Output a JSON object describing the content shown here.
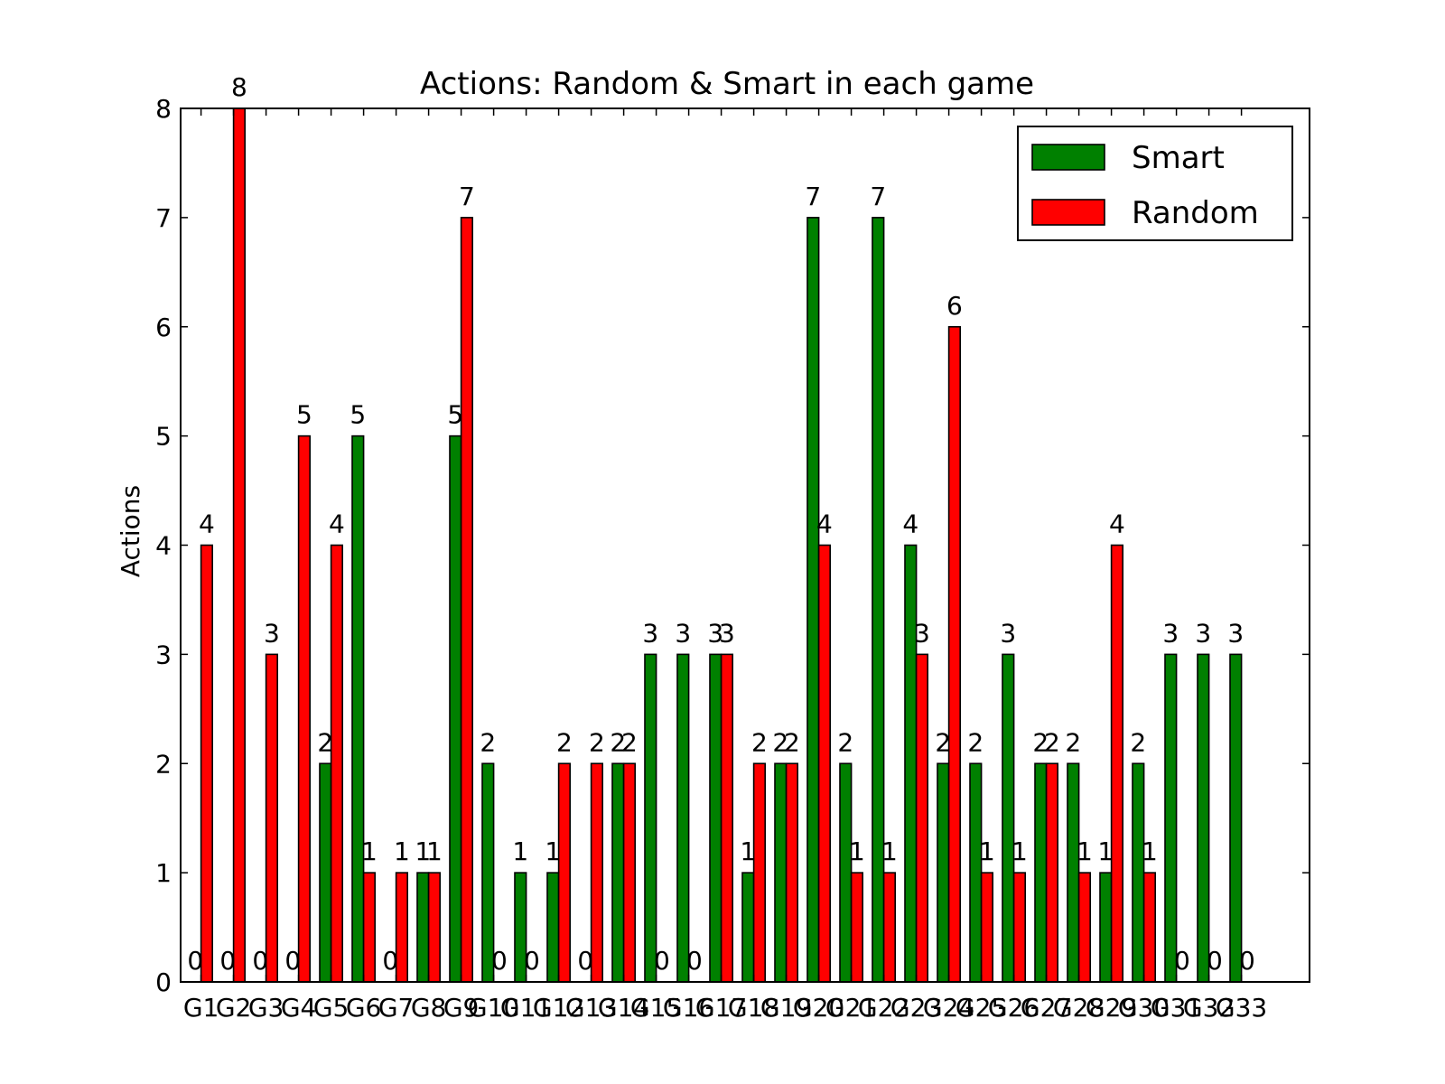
{
  "chart_data": {
    "type": "bar",
    "title": "Actions: Random & Smart in each game",
    "xlabel": "",
    "ylabel": "Actions",
    "ylim": [
      0,
      8
    ],
    "yticks": [
      0,
      1,
      2,
      3,
      4,
      5,
      6,
      7,
      8
    ],
    "grid": false,
    "legend_position": "top-right",
    "categories": [
      "G1",
      "G2",
      "G3",
      "G4",
      "G5",
      "G6",
      "G7",
      "G8",
      "G9",
      "G10",
      "G11",
      "G12",
      "G13",
      "G14",
      "G15",
      "G16",
      "G17",
      "G18",
      "G19",
      "G20",
      "G21",
      "G22",
      "G23",
      "G24",
      "G25",
      "G26",
      "G27",
      "G28",
      "G29",
      "G30",
      "G31",
      "G32",
      "G33"
    ],
    "series": [
      {
        "name": "Smart",
        "color": "#008000",
        "values": [
          0,
          0,
          0,
          0,
          2,
          5,
          0,
          1,
          5,
          2,
          1,
          1,
          0,
          2,
          3,
          3,
          3,
          1,
          2,
          7,
          2,
          7,
          4,
          2,
          2,
          3,
          2,
          2,
          1,
          2,
          3,
          3,
          3
        ]
      },
      {
        "name": "Random",
        "color": "#ff0000",
        "values": [
          4,
          8,
          3,
          5,
          4,
          1,
          1,
          1,
          7,
          0,
          0,
          2,
          2,
          2,
          0,
          0,
          3,
          2,
          2,
          4,
          1,
          1,
          3,
          6,
          1,
          1,
          2,
          1,
          4,
          1,
          0,
          0,
          0
        ]
      }
    ]
  }
}
